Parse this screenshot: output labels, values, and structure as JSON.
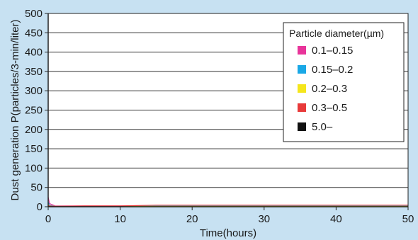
{
  "chart_data": {
    "type": "line",
    "title": "",
    "xlabel": "Time(hours)",
    "ylabel": "Dust generation  P(particles/3-min/liter)",
    "xlim": [
      0,
      50
    ],
    "ylim": [
      0,
      500
    ],
    "x_ticks": [
      "0",
      "10",
      "20",
      "30",
      "40",
      "50"
    ],
    "y_ticks": [
      "0",
      "50",
      "100",
      "150",
      "200",
      "250",
      "300",
      "350",
      "400",
      "450",
      "500"
    ],
    "grid": "horizontal",
    "legend_title": "Particle diameter(µm)",
    "legend_position": "top-right",
    "series": [
      {
        "name": "0.1–0.15",
        "color": "#e8349a",
        "x": [
          0,
          0.2,
          1,
          5,
          10,
          15,
          20,
          25,
          30,
          35,
          40,
          45,
          50
        ],
        "values": [
          25,
          8,
          2,
          2,
          2,
          3,
          3,
          3,
          3,
          3,
          3,
          3,
          3
        ]
      },
      {
        "name": "0.15–0.2",
        "color": "#1aa8e6",
        "x": [
          0,
          0.2,
          1,
          5,
          10,
          15,
          20,
          25,
          30,
          35,
          40,
          45,
          50
        ],
        "values": [
          12,
          4,
          1,
          1,
          1,
          2,
          2,
          2,
          2,
          2,
          2,
          2,
          2
        ]
      },
      {
        "name": "0.2–0.3",
        "color": "#f5e61c",
        "x": [
          0,
          0.2,
          1,
          5,
          10,
          15,
          20,
          25,
          30,
          35,
          40,
          45,
          50
        ],
        "values": [
          6,
          2,
          1,
          1,
          1,
          1,
          1,
          1,
          1,
          1,
          1,
          1,
          1
        ]
      },
      {
        "name": "0.3–0.5",
        "color": "#e83a3a",
        "x": [
          0,
          0.2,
          1,
          5,
          10,
          15,
          20,
          25,
          30,
          35,
          40,
          45,
          50
        ],
        "values": [
          4,
          2,
          1,
          2,
          2,
          4,
          4,
          4,
          4,
          4,
          4,
          4,
          4
        ]
      },
      {
        "name": "5.0–",
        "color": "#111111",
        "x": [
          0,
          0.2,
          1,
          5,
          10,
          15,
          20,
          25,
          30,
          35,
          40,
          45,
          50
        ],
        "values": [
          1,
          0,
          0,
          0,
          0,
          0,
          0,
          0,
          0,
          0,
          0,
          0,
          0
        ]
      }
    ]
  }
}
